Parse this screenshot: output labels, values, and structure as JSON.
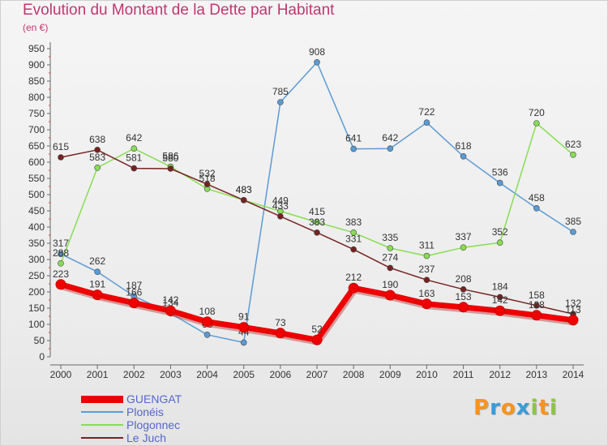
{
  "chart_data": {
    "type": "line",
    "title": "Evolution du Montant de la Dette par Habitant",
    "subtitle": "(en €)",
    "xlabel": "",
    "ylabel": "",
    "x": [
      "2000",
      "2001",
      "2002",
      "2003",
      "2004",
      "2005",
      "2006",
      "2007",
      "2008",
      "2009",
      "2010",
      "2011",
      "2012",
      "2013",
      "2014"
    ],
    "yticks": [
      0,
      50,
      100,
      150,
      200,
      250,
      300,
      350,
      400,
      450,
      500,
      550,
      600,
      650,
      700,
      750,
      800,
      850,
      900,
      950
    ],
    "ylim": [
      0,
      950
    ],
    "grid": false,
    "legend": "bottom-left",
    "series": [
      {
        "name": "GUENGAT",
        "color": "#ee0000",
        "values": [
          223,
          191,
          166,
          142,
          108,
          91,
          73,
          52,
          212,
          190,
          163,
          153,
          142,
          128,
          113
        ],
        "labels": [
          "223",
          "191",
          "166",
          "142",
          "108",
          "91",
          "73",
          "52",
          "212",
          "190",
          "163",
          "153",
          "142",
          "128",
          "113"
        ]
      },
      {
        "name": "Plonéis",
        "color": "#5b9bd5",
        "values": [
          317,
          262,
          187,
          134,
          68,
          44,
          785,
          908,
          641,
          642,
          722,
          618,
          536,
          458,
          385
        ],
        "labels": [
          "317",
          "262",
          "187",
          "134",
          "68",
          "44",
          "785",
          "908",
          "641",
          "642",
          "722",
          "618",
          "536",
          "458",
          "385"
        ]
      },
      {
        "name": "Plogonnec",
        "color": "#88dd55",
        "values": [
          288,
          583,
          642,
          586,
          518,
          483,
          449,
          415,
          383,
          335,
          311,
          337,
          352,
          720,
          623
        ],
        "labels": [
          "288",
          "583",
          "642",
          "586",
          "518",
          "483",
          "449",
          "415",
          "383",
          "335",
          "311",
          "337",
          "352",
          "720",
          "623"
        ]
      },
      {
        "name": "Le Juch",
        "color": "#772222",
        "values": [
          615,
          638,
          581,
          580,
          532,
          483,
          433,
          383,
          331,
          274,
          237,
          208,
          184,
          158,
          132
        ],
        "labels": [
          "615",
          "638",
          "581",
          "580",
          "532",
          "483",
          "433",
          "383",
          "331",
          "274",
          "237",
          "208",
          "184",
          "158",
          "132"
        ]
      }
    ]
  },
  "logo": {
    "letters": [
      "P",
      "r",
      "o",
      "x",
      "i",
      "t",
      "i"
    ],
    "colors": [
      "#f7941d",
      "#3a9bd8",
      "#f7941d",
      "#3a9bd8",
      "#8cc63f",
      "#f7941d",
      "#8cc63f"
    ]
  }
}
